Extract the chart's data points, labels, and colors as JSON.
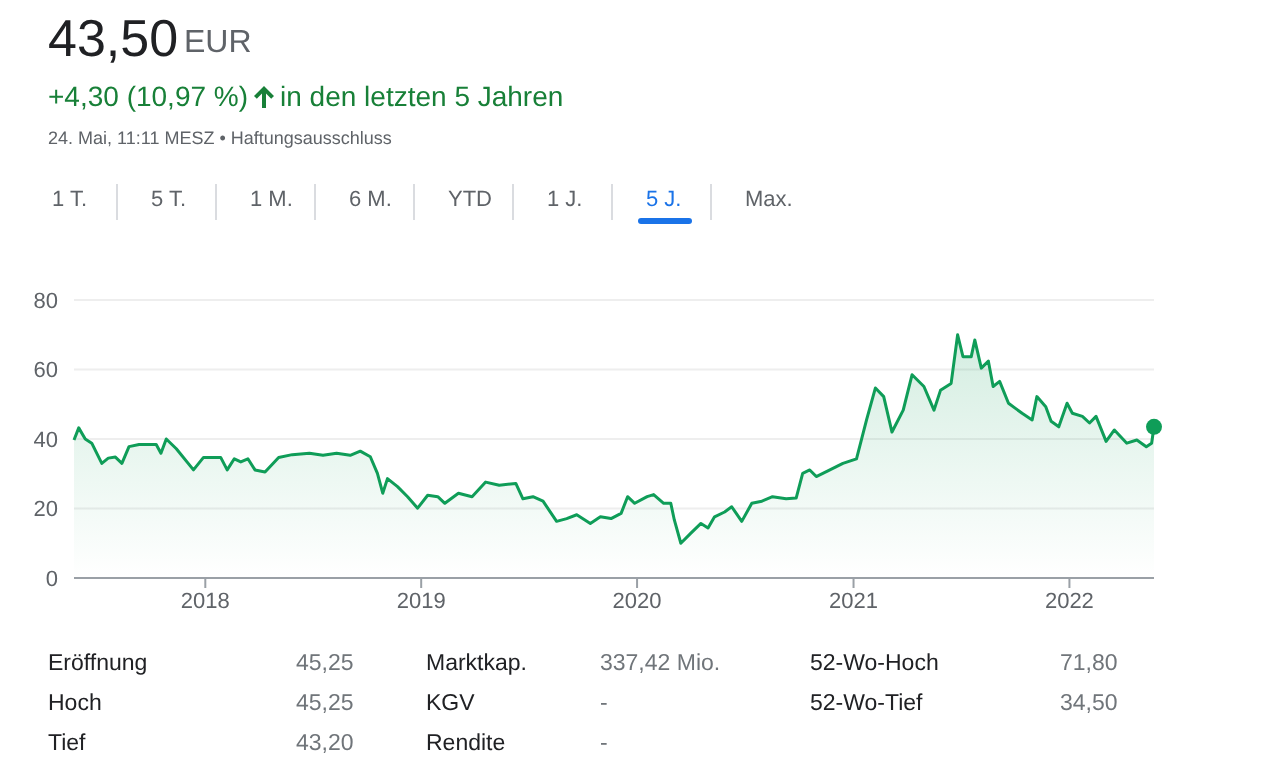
{
  "chart_data": {
    "type": "area",
    "title": "43,50",
    "annotations": [
      "EUR",
      "+4,30 (10,97 %)",
      "in den letzten 5 Jahren",
      "24. Mai, 11:11 MESZ • Haftungsausschluss",
      "1 T.",
      "5 T.",
      "1 M.",
      "6 M.",
      "YTD",
      "1 J.",
      "5 J.",
      "Max.",
      "Eröffnung",
      "45,25",
      "Marktkap.",
      "337,42 Mio.",
      "52-Wo-Hoch",
      "71,80",
      "Hoch",
      "45,25",
      "KGV",
      "-",
      "52-Wo-Tief",
      "34,50",
      "Tief",
      "43,20",
      "Rendite",
      "-"
    ],
    "x": [
      "2017-05-24",
      "2017-06-01",
      "2017-06-12",
      "2017-06-23",
      "2017-07-10",
      "2017-07-21",
      "2017-08-02",
      "2017-08-13",
      "2017-08-25",
      "2017-09-11",
      "2017-10-10",
      "2017-10-18",
      "2017-10-27",
      "2017-11-13",
      "2017-12-12",
      "2017-12-29",
      "2018-01-27",
      "2018-02-07",
      "2018-02-19",
      "2018-03-02",
      "2018-03-14",
      "2018-03-26",
      "2018-04-12",
      "2018-05-05",
      "2018-05-28",
      "2018-06-26",
      "2018-07-19",
      "2018-08-11",
      "2018-09-03",
      "2018-09-20",
      "2018-10-07",
      "2018-10-19",
      "2018-10-28",
      "2018-11-05",
      "2018-11-22",
      "2018-12-09",
      "2018-12-26",
      "2019-01-12",
      "2019-01-29",
      "2019-02-10",
      "2019-03-05",
      "2019-03-28",
      "2019-04-20",
      "2019-05-13",
      "2019-06-10",
      "2019-06-22",
      "2019-07-09",
      "2019-07-26",
      "2019-08-18",
      "2019-09-04",
      "2019-09-21",
      "2019-10-14",
      "2019-10-31",
      "2019-11-18",
      "2019-12-05",
      "2019-12-16",
      "2019-12-28",
      "2020-01-18",
      "2020-01-29",
      "2020-02-15",
      "2020-02-27",
      "2020-03-04",
      "2020-03-15",
      "2020-04-01",
      "2020-04-18",
      "2020-04-30",
      "2020-05-11",
      "2020-05-28",
      "2020-06-09",
      "2020-06-26",
      "2020-07-13",
      "2020-07-30",
      "2020-08-17",
      "2020-09-09",
      "2020-09-26",
      "2020-10-07",
      "2020-10-19",
      "2020-10-30",
      "2020-11-22",
      "2020-12-14",
      "2021-01-06",
      "2021-01-23",
      "2021-02-07",
      "2021-02-21",
      "2021-03-07",
      "2021-03-26",
      "2021-04-10",
      "2021-04-30",
      "2021-05-17",
      "2021-05-28",
      "2021-06-15",
      "2021-06-26",
      "2021-07-05",
      "2021-07-19",
      "2021-07-25",
      "2021-08-05",
      "2021-08-17",
      "2021-08-25",
      "2021-09-05",
      "2021-09-20",
      "2021-10-13",
      "2021-10-30",
      "2021-11-07",
      "2021-11-22",
      "2021-12-01",
      "2021-12-14",
      "2021-12-28",
      "2022-01-06",
      "2022-01-23",
      "2022-02-04",
      "2022-02-15",
      "2022-03-04",
      "2022-03-18",
      "2022-04-08",
      "2022-04-25",
      "2022-05-11",
      "2022-05-20",
      "2022-05-24"
    ],
    "series": [
      {
        "color": "#0f9d58",
        "values": [
          39.7,
          43.2,
          40,
          38.8,
          33,
          34.5,
          34.8,
          33,
          37.8,
          38.4,
          38.4,
          35.9,
          40,
          37.2,
          31.1,
          34.7,
          34.7,
          31.1,
          34.3,
          33.4,
          34.3,
          31.1,
          30.5,
          34.7,
          35.5,
          35.9,
          35.3,
          35.9,
          35.3,
          36.5,
          34.9,
          30.1,
          24.4,
          28.6,
          26.3,
          23.4,
          20.1,
          23.8,
          23.4,
          21.5,
          24.4,
          23.4,
          27.6,
          26.7,
          27.2,
          22.8,
          23.4,
          22.1,
          16.3,
          17.1,
          18.2,
          15.7,
          17.6,
          17.1,
          18.6,
          23.4,
          21.5,
          23.4,
          24,
          21.5,
          21.5,
          16.7,
          10,
          12.9,
          15.7,
          14.4,
          17.6,
          19,
          20.5,
          16.3,
          21.5,
          22.1,
          23.4,
          22.8,
          23,
          30.1,
          31.1,
          29.2,
          31.1,
          33,
          34.3,
          45.5,
          54.7,
          52.2,
          42,
          48.3,
          58.5,
          55.1,
          48.3,
          54,
          56,
          70,
          63.7,
          63.7,
          68.5,
          60.4,
          62.4,
          55.1,
          56.6,
          50.3,
          47.4,
          45.5,
          52.2,
          49.3,
          45.1,
          43.5,
          50.3,
          47.4,
          46.5,
          44.6,
          46.5,
          39.3,
          42.6,
          38.8,
          39.7,
          37.8,
          38.8,
          43.5
        ]
      }
    ],
    "xlim": [
      "2017-05-24",
      "2022-05-24"
    ],
    "xticks": [
      {
        "value": "2018-01-01",
        "label": "2018"
      },
      {
        "value": "2019-01-01",
        "label": "2019"
      },
      {
        "value": "2020-01-01",
        "label": "2020"
      },
      {
        "value": "2021-01-01",
        "label": "2021"
      },
      {
        "value": "2022-01-01",
        "label": "2022"
      }
    ],
    "ylim": [
      0,
      80
    ],
    "yticks": [
      0,
      20,
      40,
      60,
      80
    ],
    "grid": "y"
  }
}
